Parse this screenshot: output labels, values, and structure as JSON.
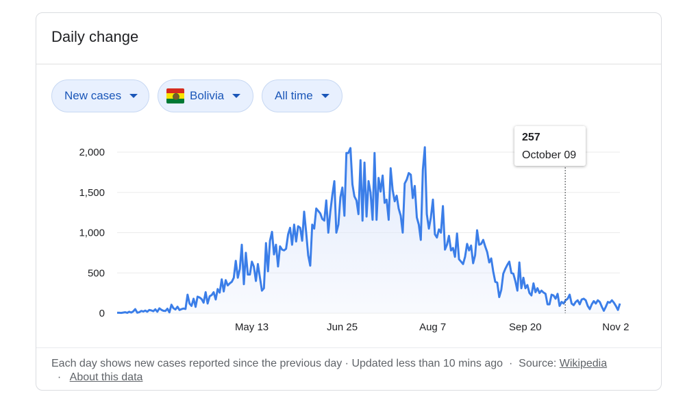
{
  "card": {
    "title": "Daily change"
  },
  "filters": {
    "metric": "New cases",
    "region": "Bolivia",
    "range": "All time"
  },
  "flag_colors": [
    "#d52b1e",
    "#f9e300",
    "#007934"
  ],
  "tooltip": {
    "value": "257",
    "date": "October 09"
  },
  "footer": {
    "note": "Each day shows new cases reported since the previous day · Updated less than 10 mins ago",
    "source_label": "Source:",
    "source_link": "Wikipedia",
    "about_link": "About this data"
  },
  "colors": {
    "line": "#3b7ee8",
    "area_top": "#dfe8fb",
    "grid": "#ebebeb",
    "chip_bg": "#e8f0fe",
    "chip_text": "#1a56b8"
  },
  "chart_data": {
    "type": "area",
    "title": "",
    "xlabel": "",
    "ylabel": "",
    "x_range": [
      "2020-03-10",
      "2020-11-04"
    ],
    "ylim": [
      0,
      2000
    ],
    "y_ticks": [
      "0",
      "500",
      "1,000",
      "1,500",
      "2,000"
    ],
    "x_ticks": [
      {
        "label": "May 13",
        "date": "2020-05-13"
      },
      {
        "label": "Jun 25",
        "date": "2020-06-25"
      },
      {
        "label": "Aug 7",
        "date": "2020-08-07"
      },
      {
        "label": "Sep 20",
        "date": "2020-09-20"
      },
      {
        "label": "Nov 2",
        "date": "2020-11-02"
      }
    ],
    "grid": true,
    "highlight": {
      "date": "2020-10-09",
      "value": 257
    },
    "series": [
      {
        "values": [
          5,
          5,
          3,
          8,
          12,
          4,
          18,
          8,
          22,
          50,
          6,
          12,
          28,
          20,
          32,
          18,
          40,
          34,
          25,
          48,
          18,
          60,
          42,
          30,
          28,
          55,
          10,
          105,
          62,
          46,
          80,
          40,
          50,
          58,
          52,
          230,
          120,
          90,
          180,
          78,
          205,
          195,
          175,
          130,
          260,
          120,
          210,
          225,
          260,
          170,
          300,
          255,
          420,
          270,
          410,
          345,
          370,
          390,
          440,
          650,
          440,
          550,
          850,
          360,
          750,
          480,
          480,
          640,
          580,
          400,
          610,
          440,
          280,
          310,
          870,
          520,
          900,
          1010,
          730,
          850,
          580,
          830,
          790,
          780,
          800,
          980,
          1060,
          850,
          1100,
          890,
          1080,
          1060,
          900,
          1260,
          1000,
          720,
          590,
          1100,
          1050,
          1300,
          1270,
          1240,
          1170,
          1150,
          1400,
          1000,
          1260,
          1470,
          1640,
          1000,
          1100,
          1440,
          1560,
          1210,
          1990,
          1990,
          2050,
          1600,
          1450,
          1400,
          1230,
          1900,
          1150,
          1870,
          1200,
          1640,
          1500,
          1160,
          1990,
          1160,
          1680,
          1510,
          1710,
          1370,
          1410,
          1160,
          1800,
          1530,
          1390,
          1460,
          1300,
          1210,
          1000,
          1610,
          1660,
          1740,
          1720,
          1430,
          1580,
          1190,
          1100,
          910,
          1780,
          2060,
          1230,
          1050,
          1190,
          1410,
          980,
          940,
          1040,
          1000,
          1330,
          790,
          850,
          960,
          780,
          810,
          700,
          990,
          670,
          640,
          610,
          700,
          860,
          780,
          840,
          620,
          720,
          1030,
          850,
          860,
          910,
          830,
          760,
          630,
          680,
          520,
          390,
          380,
          200,
          290,
          490,
          550,
          600,
          640,
          500,
          490,
          400,
          280,
          630,
          310,
          440,
          310,
          350,
          250,
          220,
          370,
          260,
          310,
          250,
          280,
          257,
          240,
          110,
          110,
          230,
          220,
          180,
          240,
          90,
          140,
          120,
          160,
          180,
          230,
          120,
          100,
          140,
          160,
          110,
          170,
          180,
          160,
          90,
          50,
          110,
          150,
          120,
          160,
          140,
          80,
          30,
          80,
          140,
          130,
          160,
          130,
          90,
          40,
          120
        ]
      }
    ]
  }
}
